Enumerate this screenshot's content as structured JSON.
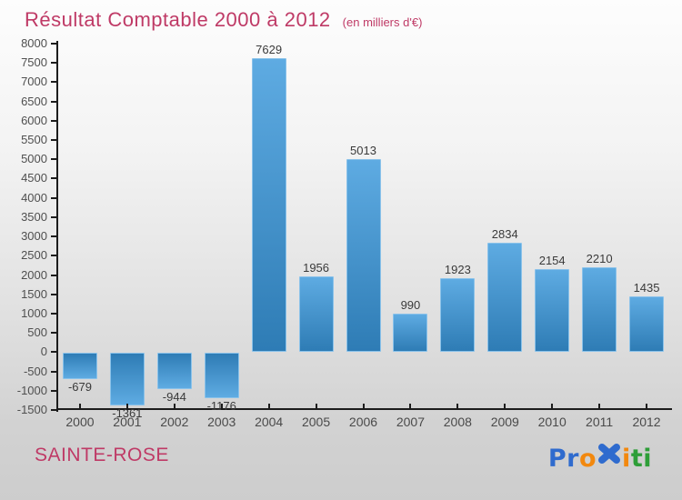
{
  "header": {
    "title": "Résultat Comptable 2000 à 2012",
    "subtitle": "(en milliers d'€)",
    "title_color": "#bf3a66"
  },
  "chart_data": {
    "type": "bar",
    "title": "Résultat Comptable 2000 à 2012",
    "subtitle": "(en milliers d'€)",
    "unit": "milliers d'€",
    "categories": [
      "2000",
      "2001",
      "2002",
      "2003",
      "2004",
      "2005",
      "2006",
      "2007",
      "2008",
      "2009",
      "2010",
      "2011",
      "2012"
    ],
    "values": [
      -679,
      -1361,
      -944,
      -1176,
      7629,
      1956,
      5013,
      990,
      1923,
      2834,
      2154,
      2210,
      1435
    ],
    "ylim": [
      -1500,
      8000
    ],
    "ytick_step": 500,
    "grid": false,
    "legend": false,
    "bar_color_top": "#5eabe2",
    "bar_color_bottom": "#2e7cb5",
    "bar_edge_color": "#8ac2ea",
    "axis_color": "#1c1c1c",
    "value_label_color": "#3a3a3a"
  },
  "footer": {
    "location": "SAINTE-ROSE",
    "location_color": "#bf3a66",
    "logo": {
      "name": "Proxiti",
      "letters": [
        {
          "ch": "P",
          "color": "#2f6bce"
        },
        {
          "ch": "r",
          "color": "#2f6bce"
        },
        {
          "ch": "o",
          "color": "#f2880e"
        },
        {
          "ch": "x",
          "color": "#2f6bce",
          "icon": true
        },
        {
          "ch": "i",
          "color": "#f2880e"
        },
        {
          "ch": "t",
          "color": "#2e9e38"
        },
        {
          "ch": "i",
          "color": "#2e9e38"
        }
      ]
    }
  }
}
